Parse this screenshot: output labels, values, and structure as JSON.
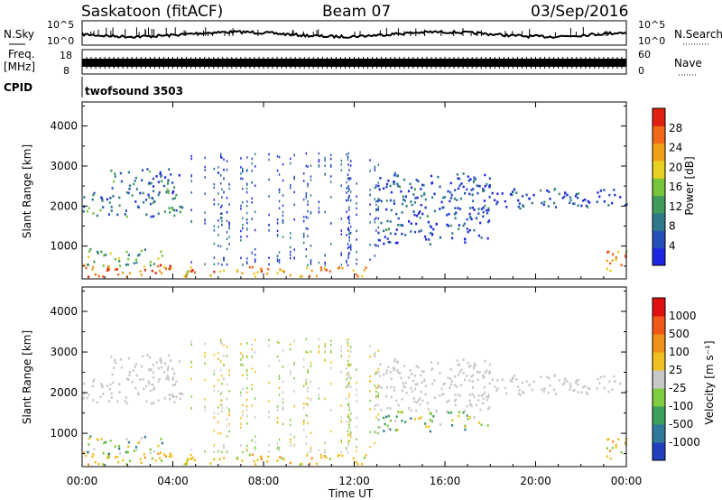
{
  "header": {
    "station": "Saskatoon (fitACF)",
    "beam": "Beam 07",
    "date": "03/Sep/2016"
  },
  "strips": {
    "nsky_label": "N.Sky",
    "nsearch_label": "N.Search",
    "noise_ticks": [
      "10^5",
      "10^0"
    ],
    "freq_label_1": "Freq.",
    "freq_label_2": "[MHz]",
    "freq_ticks": [
      "18",
      "8"
    ],
    "nave_label": "Nave",
    "nave_ticks": [
      "60",
      "0"
    ],
    "cpid_label": "CPID",
    "cpid_value": "twofsound 3503"
  },
  "chart_data": [
    {
      "type": "heatmap",
      "name": "power",
      "ylabel": "Slant Range [km]",
      "ylim": [
        180,
        4600
      ],
      "yticks": [
        1000,
        2000,
        3000,
        4000
      ],
      "xlim": [
        0,
        24
      ],
      "colorbar": {
        "label": "Power [dB]",
        "range": [
          0,
          32
        ],
        "ticks": [
          4,
          8,
          12,
          16,
          20,
          24,
          28
        ],
        "colors": [
          "#1d26e0",
          "#2550b8",
          "#2e7a8c",
          "#3f9c5c",
          "#78c43a",
          "#e8d020",
          "#f0a018",
          "#f06818",
          "#e02010"
        ]
      },
      "scatter_bands": [
        {
          "t0": 0.0,
          "t1": 4.5,
          "r0": 200,
          "r1": 500,
          "power": 26
        },
        {
          "t0": 0.2,
          "t1": 3.5,
          "r0": 450,
          "r1": 900,
          "power": 14
        },
        {
          "t0": 4.5,
          "t1": 12.8,
          "r0": 200,
          "r1": 450,
          "power": 24
        },
        {
          "t0": 23.0,
          "t1": 24.0,
          "r0": 300,
          "r1": 900,
          "power": 24
        },
        {
          "t0": 0.0,
          "t1": 1.2,
          "r0": 1700,
          "r1": 2300,
          "power": 10
        },
        {
          "t0": 1.2,
          "t1": 4.4,
          "r0": 1700,
          "r1": 2900,
          "power": 8
        },
        {
          "t0": 13.0,
          "t1": 18.0,
          "r0": 1000,
          "r1": 2800,
          "power": 5
        },
        {
          "t0": 18.0,
          "t1": 24.0,
          "r0": 1900,
          "r1": 2400,
          "power": 5
        }
      ]
    },
    {
      "type": "heatmap",
      "name": "velocity",
      "ylabel": "Slant Range [km]",
      "ylim": [
        180,
        4600
      ],
      "yticks": [
        1000,
        2000,
        3000,
        4000
      ],
      "xlim": [
        0,
        24
      ],
      "xticks": [
        "00:00",
        "04:00",
        "08:00",
        "12:00",
        "16:00",
        "20:00",
        "00:00"
      ],
      "xlabel": "Time UT",
      "colorbar": {
        "label": "Velocity [m s⁻¹]",
        "ticks": [
          "1000",
          "500",
          "100",
          "25",
          "-25",
          "-100",
          "-500",
          "-1000"
        ],
        "colors": [
          "#2040c0",
          "#2f7a9a",
          "#3aa05a",
          "#80cc40",
          "#c8c8c8",
          "#f0c020",
          "#f09018",
          "#f05818",
          "#e01010"
        ]
      }
    }
  ]
}
